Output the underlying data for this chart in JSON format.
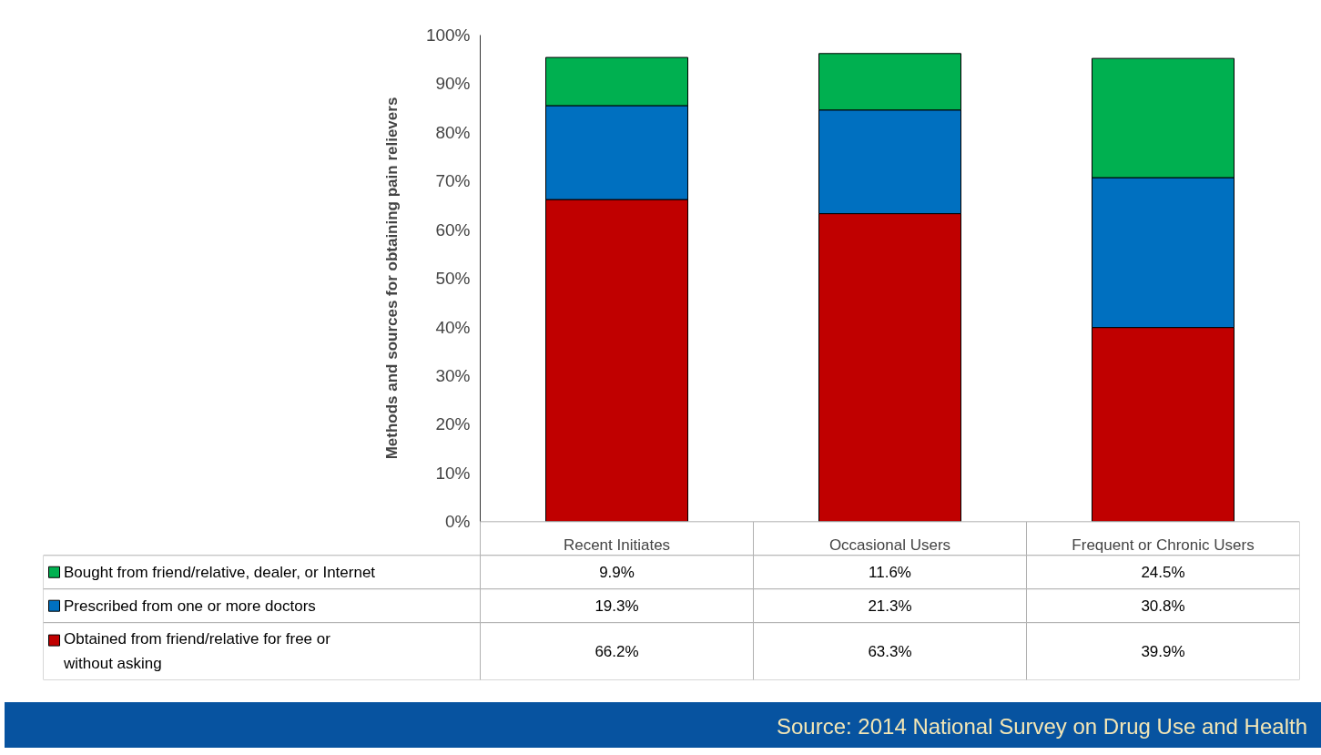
{
  "chart_data": {
    "type": "bar",
    "stacked": true,
    "ylabel": "Methods and sources for obtaining pain relievers",
    "categories": [
      "Recent Initiates",
      "Occasional Users",
      "Frequent or Chronic Users"
    ],
    "series": [
      {
        "name": "Obtained from friend/relative for free or without asking",
        "color": "#c00000",
        "values": [
          66.2,
          63.3,
          39.9
        ],
        "value_labels": [
          "66.2%",
          "63.3%",
          "39.9%"
        ]
      },
      {
        "name": "Prescribed from one or more doctors",
        "color": "#0070c0",
        "values": [
          19.3,
          21.3,
          30.8
        ],
        "value_labels": [
          "19.3%",
          "21.3%",
          "30.8%"
        ]
      },
      {
        "name": "Bought from friend/relative, dealer, or Internet",
        "color": "#00b050",
        "values": [
          9.9,
          11.6,
          24.5
        ],
        "value_labels": [
          "9.9%",
          "11.6%",
          "24.5%"
        ]
      }
    ],
    "ylim": [
      0,
      100
    ],
    "yticks": [
      {
        "value": 0,
        "label": "0%"
      },
      {
        "value": 10,
        "label": "10%"
      },
      {
        "value": 20,
        "label": "20%"
      },
      {
        "value": 30,
        "label": "30%"
      },
      {
        "value": 40,
        "label": "40%"
      },
      {
        "value": 50,
        "label": "50%"
      },
      {
        "value": 60,
        "label": "60%"
      },
      {
        "value": 70,
        "label": "70%"
      },
      {
        "value": 80,
        "label": "80%"
      },
      {
        "value": 90,
        "label": "90%"
      },
      {
        "value": 100,
        "label": "100%"
      }
    ],
    "grid": false,
    "legend": "bottom",
    "annotations": [
      "Source:  2014 National Survey on Drug Use and Health"
    ]
  }
}
